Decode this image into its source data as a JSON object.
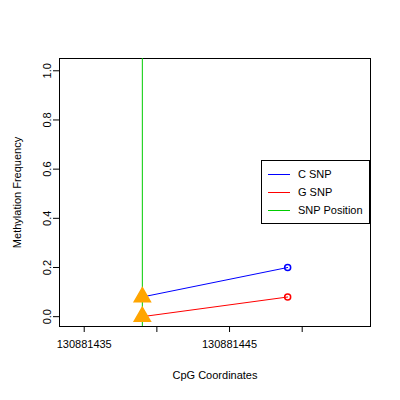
{
  "chart_data": {
    "type": "line",
    "xlabel": "CpG Coordinates",
    "ylabel": "Methylation Frequency",
    "x": [
      130881439,
      130881449
    ],
    "series": [
      {
        "name": "C SNP",
        "color": "#0000ff",
        "values": [
          0.08,
          0.2
        ]
      },
      {
        "name": "G SNP",
        "color": "#ff0000",
        "values": [
          0,
          0.08
        ]
      },
      {
        "name": "SNP Position",
        "color": "#00cc00",
        "type": "rule",
        "x": 130881439
      }
    ],
    "xlim": [
      130881433.3,
      130881454.7
    ],
    "xticks": [
      130881435,
      {
        "value": 130881440,
        "label": null
      },
      130881445,
      {
        "value": 130881450,
        "label": null
      }
    ],
    "ylim": [
      -0.04,
      1.05
    ],
    "yticks": [
      {
        "value": 0,
        "label": "0.0"
      },
      {
        "value": 0.2,
        "label": "0.2"
      },
      {
        "value": 0.4,
        "label": "0.4"
      },
      {
        "value": 0.6,
        "label": "0.6"
      },
      {
        "value": 0.8,
        "label": "0.8"
      },
      {
        "value": 1,
        "label": "1.0"
      }
    ],
    "legend": "right"
  }
}
